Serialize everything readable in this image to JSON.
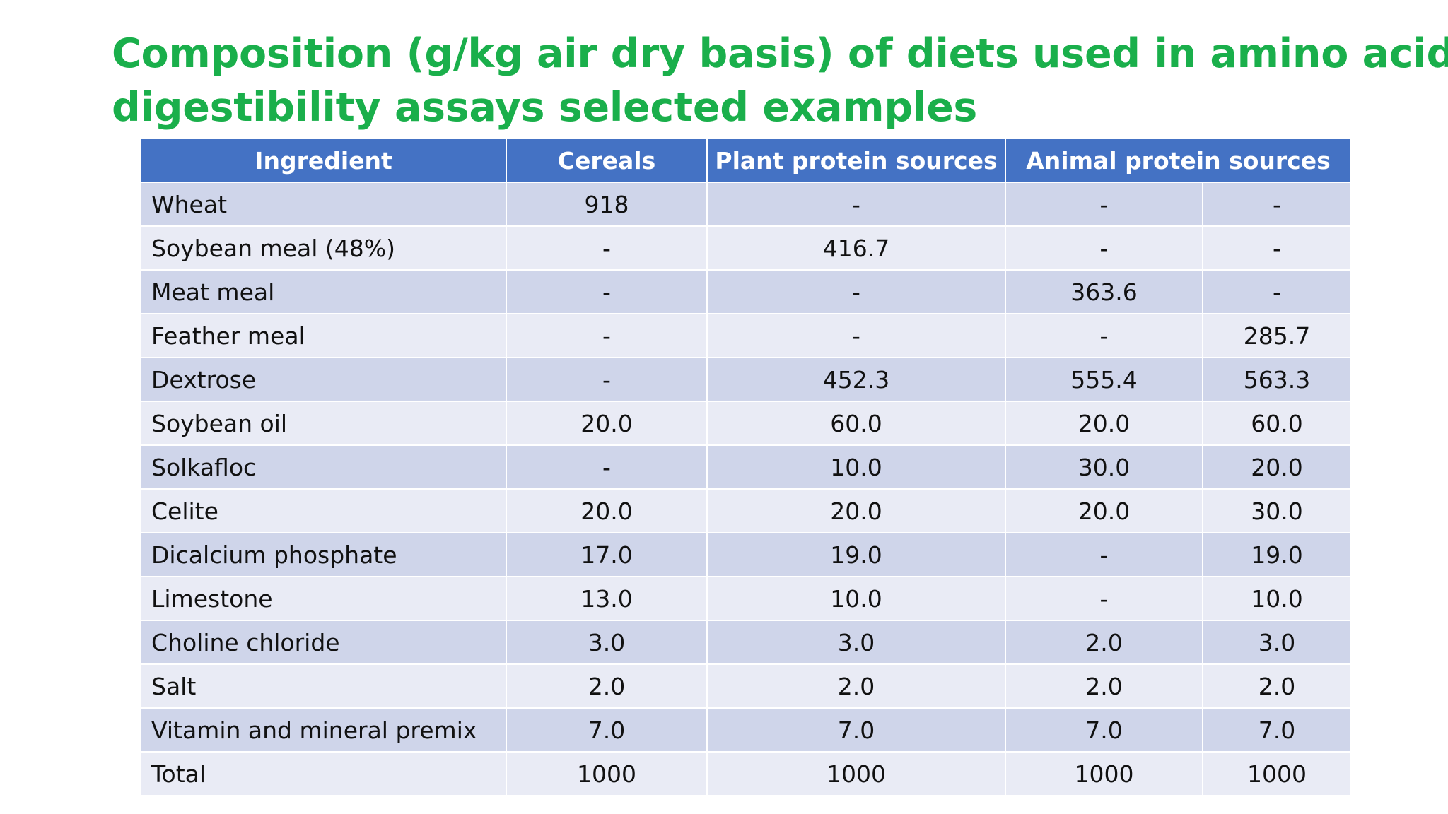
{
  "title": {
    "line1": "Composition (g/kg air dry basis) of diets used in amino acid",
    "line2": "digestibility assays selected examples"
  },
  "table": {
    "headers": {
      "ingredient": "Ingredient",
      "cereals": "Cereals",
      "plant": "Plant protein sources",
      "animal": "Animal protein sources"
    },
    "rows": [
      {
        "ingredient": "Wheat",
        "cereals": "918",
        "plant": "-",
        "animal1": "-",
        "animal2": "-"
      },
      {
        "ingredient": "Soybean meal (48%)",
        "cereals": "-",
        "plant": "416.7",
        "animal1": "-",
        "animal2": "-"
      },
      {
        "ingredient": "Meat meal",
        "cereals": "-",
        "plant": "-",
        "animal1": "363.6",
        "animal2": "-"
      },
      {
        "ingredient": "Feather meal",
        "cereals": "-",
        "plant": "-",
        "animal1": "-",
        "animal2": "285.7"
      },
      {
        "ingredient": "Dextrose",
        "cereals": "-",
        "plant": "452.3",
        "animal1": "555.4",
        "animal2": "563.3"
      },
      {
        "ingredient": "Soybean oil",
        "cereals": "20.0",
        "plant": "60.0",
        "animal1": "20.0",
        "animal2": "60.0"
      },
      {
        "ingredient": "Solkafloc",
        "cereals": "-",
        "plant": "10.0",
        "animal1": "30.0",
        "animal2": "20.0"
      },
      {
        "ingredient": "Celite",
        "cereals": "20.0",
        "plant": "20.0",
        "animal1": "20.0",
        "animal2": "30.0"
      },
      {
        "ingredient": "Dicalcium phosphate",
        "cereals": "17.0",
        "plant": "19.0",
        "animal1": "-",
        "animal2": "19.0"
      },
      {
        "ingredient": "Limestone",
        "cereals": "13.0",
        "plant": "10.0",
        "animal1": "-",
        "animal2": "10.0"
      },
      {
        "ingredient": "Choline chloride",
        "cereals": "3.0",
        "plant": "3.0",
        "animal1": "2.0",
        "animal2": "3.0"
      },
      {
        "ingredient": "Salt",
        "cereals": "2.0",
        "plant": "2.0",
        "animal1": "2.0",
        "animal2": "2.0"
      },
      {
        "ingredient": "Vitamin and mineral premix",
        "cereals": "7.0",
        "plant": "7.0",
        "animal1": "7.0",
        "animal2": "7.0"
      },
      {
        "ingredient": "Total",
        "cereals": "1000",
        "plant": "1000",
        "animal1": "1000",
        "animal2": "1000"
      }
    ]
  },
  "colors": {
    "title": "#1aaf4b",
    "header_bg": "#4472c4",
    "row_dark": "#cfd5ea",
    "row_light": "#e9ebf5"
  }
}
